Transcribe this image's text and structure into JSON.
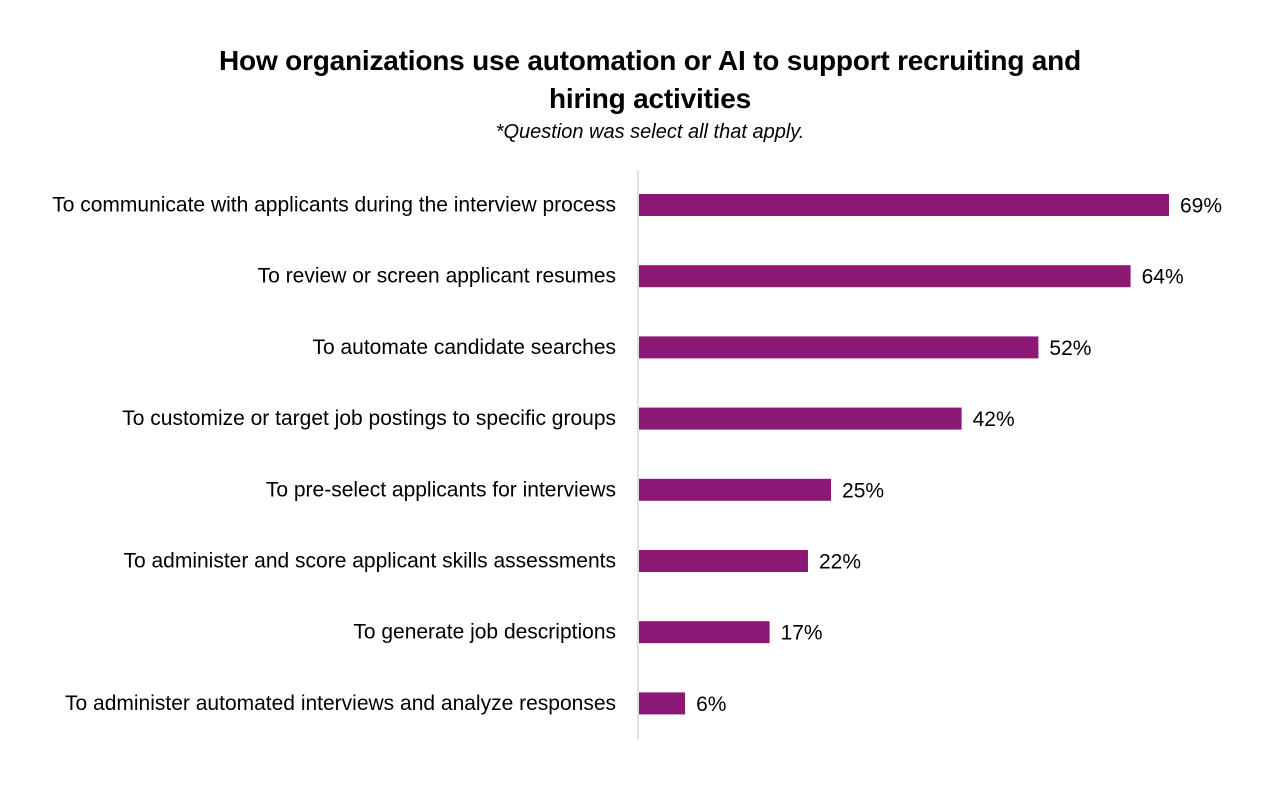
{
  "chart_data": {
    "type": "bar",
    "orientation": "horizontal",
    "title": "How organizations use automation or AI to support recruiting and hiring activities",
    "subtitle": "*Question was select all that apply.",
    "categories": [
      "To communicate with applicants during the interview process",
      "To review or screen applicant resumes",
      "To automate candidate searches",
      "To customize or target job postings to specific groups",
      "To pre-select applicants for interviews",
      "To administer and score applicant skills assessments",
      "To generate job descriptions",
      "To administer automated interviews and analyze responses"
    ],
    "values": [
      69,
      64,
      52,
      42,
      25,
      22,
      17,
      6
    ],
    "value_labels": [
      "69%",
      "64%",
      "52%",
      "42%",
      "25%",
      "22%",
      "17%",
      "6%"
    ],
    "unit": "%",
    "bar_color": "#8b1874",
    "axis_color": "#d9d9d9",
    "grid": false,
    "legend": "none"
  }
}
